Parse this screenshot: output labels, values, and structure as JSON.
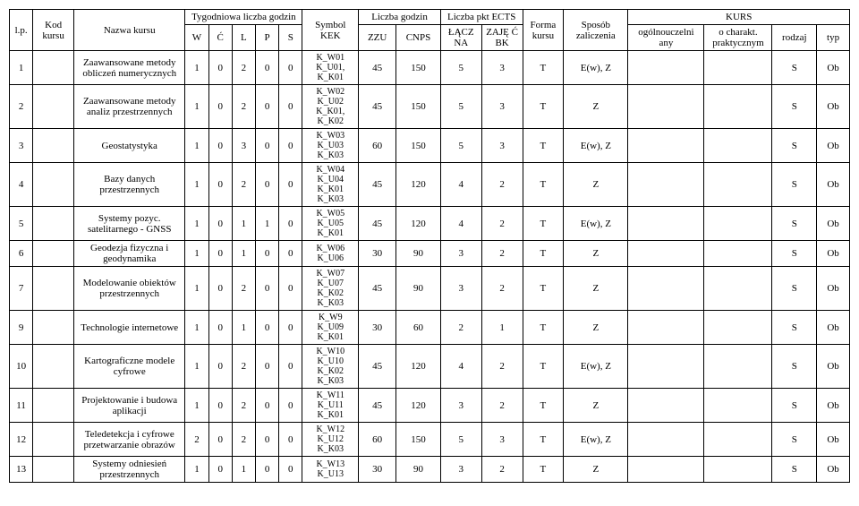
{
  "columns": {
    "lp": "l.p.",
    "kod": "Kod kursu",
    "nazwa": "Nazwa kursu",
    "tyg": "Tygodniowa liczba godzin",
    "w": "W",
    "c": "Ć",
    "l": "L",
    "p": "P",
    "s": "S",
    "symbol": "Symbol KEK",
    "liczba_g": "Liczba godzin",
    "zzu": "ZZU",
    "cnps": "CNPS",
    "ects": "Liczba pkt ECTS",
    "lacz": "ŁĄCZ NA",
    "zaje": "ZAJĘ Ć BK",
    "forma": "Forma kursu",
    "sposob": "Sposób zaliczenia",
    "kurs": "KURS",
    "ogol": "ogólnouczelni any",
    "ochar": "o charakt. praktycznym",
    "rodzaj": "rodzaj",
    "typ": "typ"
  },
  "rows": [
    {
      "lp": "1",
      "nazwa": "Zaawansowane metody obliczeń numerycznych",
      "w": "1",
      "c": "0",
      "l": "2",
      "p": "0",
      "s": "0",
      "sym": "K_W01\nK_U01,\nK_K01",
      "zzu": "45",
      "cnps": "150",
      "lacz": "5",
      "zaje": "3",
      "forma": "T",
      "spos": "E(w), Z",
      "rodzaj": "S",
      "typ": "Ob"
    },
    {
      "lp": "2",
      "nazwa": "Zaawansowane metody analiz przestrzennych",
      "w": "1",
      "c": "0",
      "l": "2",
      "p": "0",
      "s": "0",
      "sym": "K_W02\nK_U02\nK_K01,\nK_K02",
      "zzu": "45",
      "cnps": "150",
      "lacz": "5",
      "zaje": "3",
      "forma": "T",
      "spos": "Z",
      "rodzaj": "S",
      "typ": "Ob"
    },
    {
      "lp": "3",
      "nazwa": "Geostatystyka",
      "w": "1",
      "c": "0",
      "l": "3",
      "p": "0",
      "s": "0",
      "sym": "K_W03\nK_U03\nK_K03",
      "zzu": "60",
      "cnps": "150",
      "lacz": "5",
      "zaje": "3",
      "forma": "T",
      "spos": "E(w), Z",
      "rodzaj": "S",
      "typ": "Ob"
    },
    {
      "lp": "4",
      "nazwa": "Bazy danych przestrzennych",
      "w": "1",
      "c": "0",
      "l": "2",
      "p": "0",
      "s": "0",
      "sym": "K_W04\nK_U04\nK_K01\nK_K03",
      "zzu": "45",
      "cnps": "120",
      "lacz": "4",
      "zaje": "2",
      "forma": "T",
      "spos": "Z",
      "rodzaj": "S",
      "typ": "Ob"
    },
    {
      "lp": "5",
      "nazwa": "Systemy pozyc. satelitarnego - GNSS",
      "w": "1",
      "c": "0",
      "l": "1",
      "p": "1",
      "s": "0",
      "sym": "K_W05\nK_U05\nK_K01",
      "zzu": "45",
      "cnps": "120",
      "lacz": "4",
      "zaje": "2",
      "forma": "T",
      "spos": "E(w), Z",
      "rodzaj": "S",
      "typ": "Ob"
    },
    {
      "lp": "6",
      "nazwa": "Geodezja fizyczna i geodynamika",
      "w": "1",
      "c": "0",
      "l": "1",
      "p": "0",
      "s": "0",
      "sym": "K_W06\nK_U06",
      "zzu": "30",
      "cnps": "90",
      "lacz": "3",
      "zaje": "2",
      "forma": "T",
      "spos": "Z",
      "rodzaj": "S",
      "typ": "Ob"
    },
    {
      "lp": "7",
      "nazwa": "Modelowanie obiektów przestrzennych",
      "w": "1",
      "c": "0",
      "l": "2",
      "p": "0",
      "s": "0",
      "sym": "K_W07\nK_U07\nK_K02\nK_K03",
      "zzu": "45",
      "cnps": "90",
      "lacz": "3",
      "zaje": "2",
      "forma": "T",
      "spos": "Z",
      "rodzaj": "S",
      "typ": "Ob"
    },
    {
      "lp": "9",
      "nazwa": "Technologie internetowe",
      "w": "1",
      "c": "0",
      "l": "1",
      "p": "0",
      "s": "0",
      "sym": "K_W9\nK_U09\nK_K01",
      "zzu": "30",
      "cnps": "60",
      "lacz": "2",
      "zaje": "1",
      "forma": "T",
      "spos": "Z",
      "rodzaj": "S",
      "typ": "Ob"
    },
    {
      "lp": "10",
      "nazwa": "Kartograficzne modele cyfrowe",
      "w": "1",
      "c": "0",
      "l": "2",
      "p": "0",
      "s": "0",
      "sym": "K_W10\nK_U10\nK_K02\nK_K03",
      "zzu": "45",
      "cnps": "120",
      "lacz": "4",
      "zaje": "2",
      "forma": "T",
      "spos": "E(w), Z",
      "rodzaj": "S",
      "typ": "Ob"
    },
    {
      "lp": "11",
      "nazwa": "Projektowanie i budowa aplikacji",
      "w": "1",
      "c": "0",
      "l": "2",
      "p": "0",
      "s": "0",
      "sym": "K_W11\nK_U11\nK_K01",
      "zzu": "45",
      "cnps": "120",
      "lacz": "3",
      "zaje": "2",
      "forma": "T",
      "spos": "Z",
      "rodzaj": "S",
      "typ": "Ob"
    },
    {
      "lp": "12",
      "nazwa": "Teledetekcja i cyfrowe przetwarzanie obrazów",
      "w": "2",
      "c": "0",
      "l": "2",
      "p": "0",
      "s": "0",
      "sym": "K_W12\nK_U12\nK_K03",
      "zzu": "60",
      "cnps": "150",
      "lacz": "5",
      "zaje": "3",
      "forma": "T",
      "spos": "E(w), Z",
      "rodzaj": "S",
      "typ": "Ob"
    },
    {
      "lp": "13",
      "nazwa": "Systemy odniesień przestrzennych",
      "w": "1",
      "c": "0",
      "l": "1",
      "p": "0",
      "s": "0",
      "sym": "K_W13\nK_U13",
      "zzu": "30",
      "cnps": "90",
      "lacz": "3",
      "zaje": "2",
      "forma": "T",
      "spos": "Z",
      "rodzaj": "S",
      "typ": "Ob"
    }
  ]
}
